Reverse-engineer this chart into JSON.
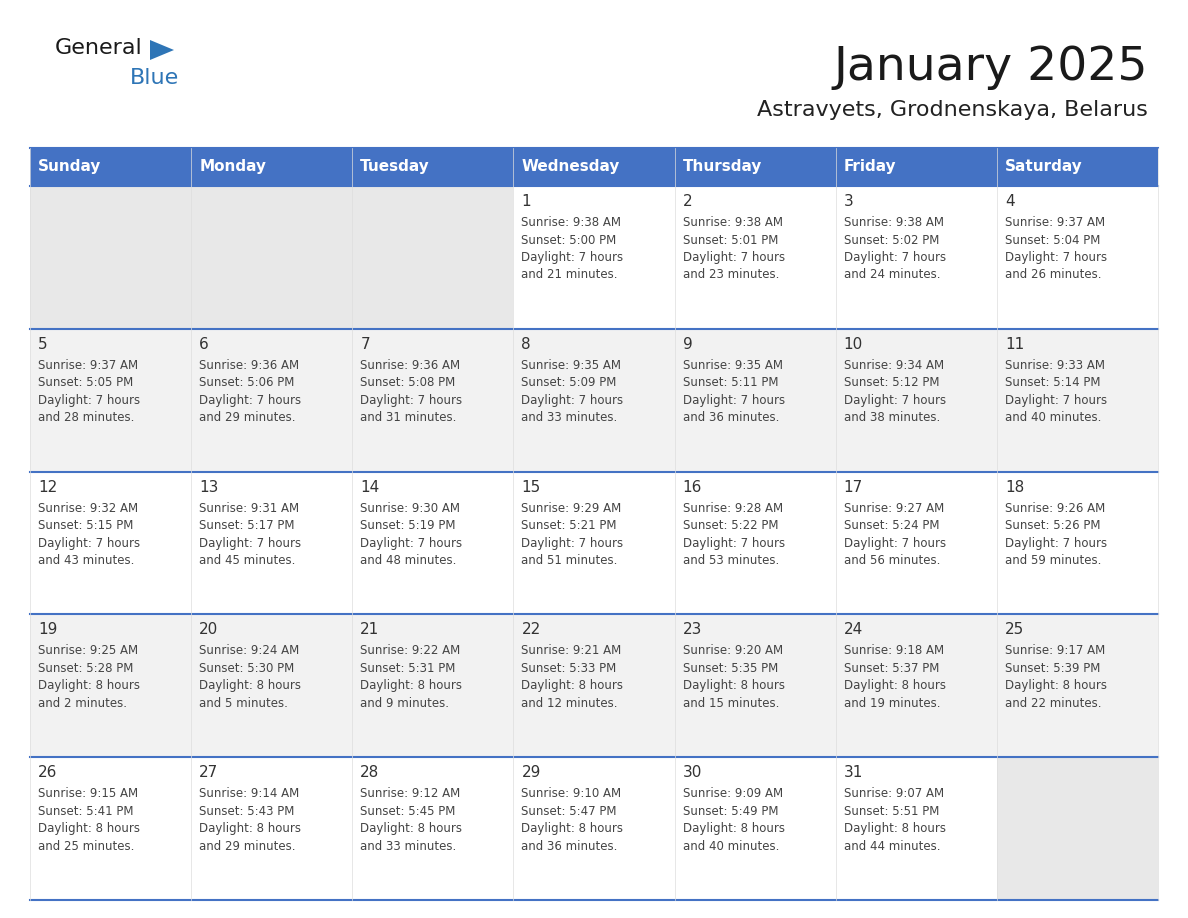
{
  "title": "January 2025",
  "subtitle": "Astravyets, Grodnenskaya, Belarus",
  "days_of_week": [
    "Sunday",
    "Monday",
    "Tuesday",
    "Wednesday",
    "Thursday",
    "Friday",
    "Saturday"
  ],
  "header_bg": "#4472C4",
  "header_text_color": "#FFFFFF",
  "cell_bg_white": "#FFFFFF",
  "cell_bg_gray": "#F2F2F2",
  "cell_bg_empty": "#E8E8E8",
  "text_color": "#444444",
  "day_number_color": "#333333",
  "grid_color": "#4472C4",
  "title_color": "#1a1a1a",
  "subtitle_color": "#222222",
  "logo_general_color": "#1a1a1a",
  "logo_blue_color": "#2E75B6",
  "weeks": [
    [
      {
        "day": null,
        "info": null
      },
      {
        "day": null,
        "info": null
      },
      {
        "day": null,
        "info": null
      },
      {
        "day": 1,
        "info": "Sunrise: 9:38 AM\nSunset: 5:00 PM\nDaylight: 7 hours\nand 21 minutes."
      },
      {
        "day": 2,
        "info": "Sunrise: 9:38 AM\nSunset: 5:01 PM\nDaylight: 7 hours\nand 23 minutes."
      },
      {
        "day": 3,
        "info": "Sunrise: 9:38 AM\nSunset: 5:02 PM\nDaylight: 7 hours\nand 24 minutes."
      },
      {
        "day": 4,
        "info": "Sunrise: 9:37 AM\nSunset: 5:04 PM\nDaylight: 7 hours\nand 26 minutes."
      }
    ],
    [
      {
        "day": 5,
        "info": "Sunrise: 9:37 AM\nSunset: 5:05 PM\nDaylight: 7 hours\nand 28 minutes."
      },
      {
        "day": 6,
        "info": "Sunrise: 9:36 AM\nSunset: 5:06 PM\nDaylight: 7 hours\nand 29 minutes."
      },
      {
        "day": 7,
        "info": "Sunrise: 9:36 AM\nSunset: 5:08 PM\nDaylight: 7 hours\nand 31 minutes."
      },
      {
        "day": 8,
        "info": "Sunrise: 9:35 AM\nSunset: 5:09 PM\nDaylight: 7 hours\nand 33 minutes."
      },
      {
        "day": 9,
        "info": "Sunrise: 9:35 AM\nSunset: 5:11 PM\nDaylight: 7 hours\nand 36 minutes."
      },
      {
        "day": 10,
        "info": "Sunrise: 9:34 AM\nSunset: 5:12 PM\nDaylight: 7 hours\nand 38 minutes."
      },
      {
        "day": 11,
        "info": "Sunrise: 9:33 AM\nSunset: 5:14 PM\nDaylight: 7 hours\nand 40 minutes."
      }
    ],
    [
      {
        "day": 12,
        "info": "Sunrise: 9:32 AM\nSunset: 5:15 PM\nDaylight: 7 hours\nand 43 minutes."
      },
      {
        "day": 13,
        "info": "Sunrise: 9:31 AM\nSunset: 5:17 PM\nDaylight: 7 hours\nand 45 minutes."
      },
      {
        "day": 14,
        "info": "Sunrise: 9:30 AM\nSunset: 5:19 PM\nDaylight: 7 hours\nand 48 minutes."
      },
      {
        "day": 15,
        "info": "Sunrise: 9:29 AM\nSunset: 5:21 PM\nDaylight: 7 hours\nand 51 minutes."
      },
      {
        "day": 16,
        "info": "Sunrise: 9:28 AM\nSunset: 5:22 PM\nDaylight: 7 hours\nand 53 minutes."
      },
      {
        "day": 17,
        "info": "Sunrise: 9:27 AM\nSunset: 5:24 PM\nDaylight: 7 hours\nand 56 minutes."
      },
      {
        "day": 18,
        "info": "Sunrise: 9:26 AM\nSunset: 5:26 PM\nDaylight: 7 hours\nand 59 minutes."
      }
    ],
    [
      {
        "day": 19,
        "info": "Sunrise: 9:25 AM\nSunset: 5:28 PM\nDaylight: 8 hours\nand 2 minutes."
      },
      {
        "day": 20,
        "info": "Sunrise: 9:24 AM\nSunset: 5:30 PM\nDaylight: 8 hours\nand 5 minutes."
      },
      {
        "day": 21,
        "info": "Sunrise: 9:22 AM\nSunset: 5:31 PM\nDaylight: 8 hours\nand 9 minutes."
      },
      {
        "day": 22,
        "info": "Sunrise: 9:21 AM\nSunset: 5:33 PM\nDaylight: 8 hours\nand 12 minutes."
      },
      {
        "day": 23,
        "info": "Sunrise: 9:20 AM\nSunset: 5:35 PM\nDaylight: 8 hours\nand 15 minutes."
      },
      {
        "day": 24,
        "info": "Sunrise: 9:18 AM\nSunset: 5:37 PM\nDaylight: 8 hours\nand 19 minutes."
      },
      {
        "day": 25,
        "info": "Sunrise: 9:17 AM\nSunset: 5:39 PM\nDaylight: 8 hours\nand 22 minutes."
      }
    ],
    [
      {
        "day": 26,
        "info": "Sunrise: 9:15 AM\nSunset: 5:41 PM\nDaylight: 8 hours\nand 25 minutes."
      },
      {
        "day": 27,
        "info": "Sunrise: 9:14 AM\nSunset: 5:43 PM\nDaylight: 8 hours\nand 29 minutes."
      },
      {
        "day": 28,
        "info": "Sunrise: 9:12 AM\nSunset: 5:45 PM\nDaylight: 8 hours\nand 33 minutes."
      },
      {
        "day": 29,
        "info": "Sunrise: 9:10 AM\nSunset: 5:47 PM\nDaylight: 8 hours\nand 36 minutes."
      },
      {
        "day": 30,
        "info": "Sunrise: 9:09 AM\nSunset: 5:49 PM\nDaylight: 8 hours\nand 40 minutes."
      },
      {
        "day": 31,
        "info": "Sunrise: 9:07 AM\nSunset: 5:51 PM\nDaylight: 8 hours\nand 44 minutes."
      },
      {
        "day": null,
        "info": null
      }
    ]
  ]
}
